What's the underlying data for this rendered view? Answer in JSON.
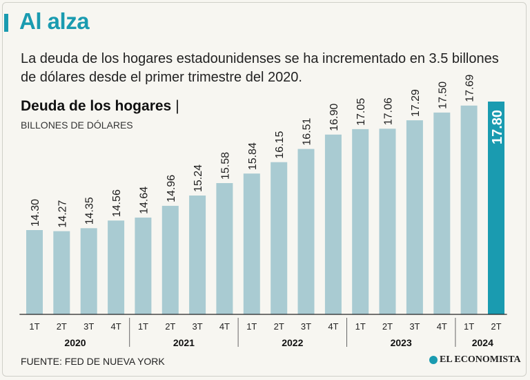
{
  "header": {
    "title": "Al alza",
    "subtitle": "La deuda de los hogares estadounidenses se ha incrementado en 3.5 billones de dólares desde el primer trimestre del 2020."
  },
  "chart_header": {
    "title": "Deuda de los hogares",
    "separator": "|",
    "units": "BILLONES DE DÓLARES"
  },
  "footer": {
    "source": "FUENTE: FED DE NUEVA YORK",
    "brand": "EL ECONOMISTA"
  },
  "colors": {
    "bar": "#a9cbd2",
    "highlight": "#1a9bb0",
    "axis": "#222222"
  },
  "chart_data": {
    "type": "bar",
    "title": "Deuda de los hogares",
    "ylabel": "BILLONES DE DÓLARES",
    "xlabel": "",
    "ylim": [
      0,
      18
    ],
    "grid": false,
    "categories": [
      "1T",
      "2T",
      "3T",
      "4T",
      "1T",
      "2T",
      "3T",
      "4T",
      "1T",
      "2T",
      "3T",
      "4T",
      "1T",
      "2T",
      "3T",
      "4T",
      "1T",
      "2T"
    ],
    "years": [
      {
        "label": "2020",
        "count": 4
      },
      {
        "label": "2021",
        "count": 4
      },
      {
        "label": "2022",
        "count": 4
      },
      {
        "label": "2023",
        "count": 4
      },
      {
        "label": "2024",
        "count": 2
      }
    ],
    "values": [
      14.3,
      14.27,
      14.35,
      14.56,
      14.64,
      14.96,
      15.24,
      15.58,
      15.84,
      16.15,
      16.51,
      16.9,
      17.05,
      17.06,
      17.29,
      17.5,
      17.69,
      17.8
    ],
    "value_labels": [
      "14.30",
      "14.27",
      "14.35",
      "14.56",
      "14.64",
      "14.96",
      "15.24",
      "15.58",
      "15.84",
      "16.15",
      "16.51",
      "16.90",
      "17.05",
      "17.06",
      "17.29",
      "17.50",
      "17.69",
      "17.80"
    ],
    "highlight_index": 17
  }
}
